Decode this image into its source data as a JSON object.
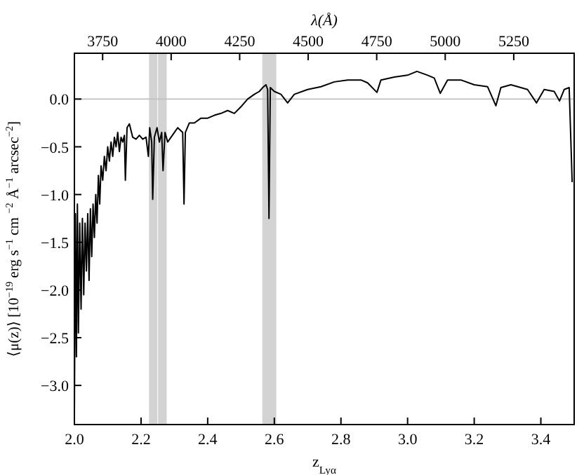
{
  "chart_data": {
    "type": "line",
    "xlabel": "z$_{Lyα}$",
    "ylabel": "⟨μ(z)⟩ [10$^{−19}$ erg s$^{−1}$ cm $^{−2}$ Å$^{−1}$ arcsec$^{−2}$]",
    "x2label": "λ(Å)",
    "xlim": [
      2.0,
      3.5
    ],
    "ylim": [
      -3.41,
      0.48
    ],
    "xticks": [
      {
        "value": 2.0,
        "label": "2.0"
      },
      {
        "value": 2.2,
        "label": "2.2"
      },
      {
        "value": 2.4,
        "label": "2.4"
      },
      {
        "value": 2.6,
        "label": "2.6"
      },
      {
        "value": 2.8,
        "label": "2.8"
      },
      {
        "value": 3.0,
        "label": "3.0"
      },
      {
        "value": 3.2,
        "label": "3.2"
      },
      {
        "value": 3.4,
        "label": "3.4"
      }
    ],
    "yticks": [
      {
        "value": -3,
        "label": "−3.0"
      },
      {
        "value": -2.5,
        "label": "−2.5"
      },
      {
        "value": -2,
        "label": "−2.0"
      },
      {
        "value": -1.5,
        "label": "−1.5"
      },
      {
        "value": -1,
        "label": "−1.0"
      },
      {
        "value": -0.5,
        "label": "−0.5"
      },
      {
        "value": 0,
        "label": "0.0"
      }
    ],
    "x2lim": [
      3647.0,
      5470.5
    ],
    "x2ticks": [
      3750,
      4000,
      4250,
      4500,
      4750,
      5000,
      5250
    ],
    "grid": false,
    "line_style": "solid",
    "marker": "none",
    "ref_lines": [
      {
        "axis": "y",
        "value": 0,
        "color": "#c0c0c0"
      }
    ],
    "bands": [
      {
        "axis": "x",
        "from": 2.224,
        "to": 2.249,
        "color": "#d3d3d3"
      },
      {
        "axis": "x",
        "from": 2.251,
        "to": 2.277,
        "color": "#d3d3d3"
      },
      {
        "axis": "x",
        "from": 2.564,
        "to": 2.606,
        "color": "#d3d3d3"
      }
    ],
    "series": [
      {
        "color": "#000000",
        "x": [
          2.0,
          2.003,
          2.006,
          2.009,
          2.012,
          2.016,
          2.02,
          2.024,
          2.028,
          2.032,
          2.036,
          2.04,
          2.044,
          2.048,
          2.052,
          2.056,
          2.06,
          2.064,
          2.068,
          2.072,
          2.076,
          2.08,
          2.085,
          2.09,
          2.095,
          2.1,
          2.105,
          2.11,
          2.115,
          2.12,
          2.125,
          2.13,
          2.135,
          2.14,
          2.145,
          2.15,
          2.153,
          2.158,
          2.165,
          2.175,
          2.185,
          2.195,
          2.205,
          2.215,
          2.222,
          2.226,
          2.232,
          2.235,
          2.24,
          2.248,
          2.255,
          2.262,
          2.266,
          2.272,
          2.28,
          2.29,
          2.3,
          2.31,
          2.325,
          2.329,
          2.333,
          2.345,
          2.36,
          2.38,
          2.4,
          2.42,
          2.44,
          2.46,
          2.48,
          2.5,
          2.52,
          2.54,
          2.555,
          2.565,
          2.575,
          2.58,
          2.584,
          2.588,
          2.6,
          2.62,
          2.64,
          2.66,
          2.7,
          2.74,
          2.78,
          2.82,
          2.86,
          2.88,
          2.908,
          2.92,
          2.96,
          3.0,
          3.028,
          3.06,
          3.08,
          3.098,
          3.12,
          3.16,
          3.2,
          3.24,
          3.265,
          3.28,
          3.31,
          3.34,
          3.36,
          3.387,
          3.41,
          3.44,
          3.456,
          3.47,
          3.485,
          3.494
        ],
        "values": [
          -3.3,
          -1.2,
          -2.7,
          -1.1,
          -2.45,
          -1.3,
          -2.2,
          -1.25,
          -2.05,
          -1.3,
          -1.8,
          -1.2,
          -1.9,
          -1.15,
          -1.65,
          -1.1,
          -1.45,
          -1.0,
          -1.3,
          -0.8,
          -1.1,
          -0.7,
          -0.85,
          -0.6,
          -0.75,
          -0.5,
          -0.65,
          -0.45,
          -0.6,
          -0.4,
          -0.5,
          -0.35,
          -0.55,
          -0.4,
          -0.45,
          -0.38,
          -0.85,
          -0.3,
          -0.26,
          -0.4,
          -0.42,
          -0.38,
          -0.42,
          -0.4,
          -0.6,
          -0.3,
          -0.45,
          -1.05,
          -0.4,
          -0.3,
          -0.45,
          -0.35,
          -0.75,
          -0.35,
          -0.45,
          -0.4,
          -0.35,
          -0.3,
          -0.35,
          -1.1,
          -0.35,
          -0.25,
          -0.25,
          -0.2,
          -0.2,
          -0.17,
          -0.15,
          -0.12,
          -0.15,
          -0.08,
          0.0,
          0.05,
          0.08,
          0.12,
          0.15,
          0.1,
          -1.25,
          0.12,
          0.08,
          0.05,
          -0.04,
          0.05,
          0.1,
          0.13,
          0.18,
          0.2,
          0.2,
          0.17,
          0.07,
          0.2,
          0.23,
          0.25,
          0.29,
          0.25,
          0.22,
          0.06,
          0.2,
          0.2,
          0.15,
          0.13,
          -0.07,
          0.12,
          0.15,
          0.12,
          0.1,
          -0.04,
          0.1,
          0.08,
          -0.02,
          0.1,
          0.12,
          -0.87
        ]
      }
    ]
  }
}
